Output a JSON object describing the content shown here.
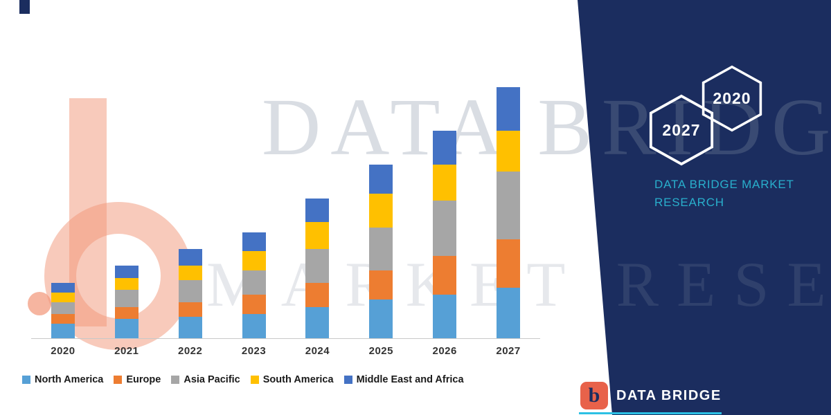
{
  "watermark": {
    "line1": "DATA BRIDGE",
    "line2": "MARKET RESEARCH"
  },
  "panel": {
    "hex_left": "2027",
    "hex_right": "2020",
    "title_line1": "DATA BRIDGE MARKET",
    "title_line2": "RESEARCH"
  },
  "footer": {
    "brand": "DATA BRIDGE",
    "logo_letter": "b"
  },
  "chart_data": {
    "type": "bar",
    "stacked": true,
    "title": "",
    "xlabel": "",
    "ylabel": "",
    "categories": [
      "2020",
      "2021",
      "2022",
      "2023",
      "2024",
      "2025",
      "2026",
      "2027"
    ],
    "series": [
      {
        "name": "North America",
        "color": "#56A0D6",
        "values": [
          6,
          8,
          9,
          10,
          13,
          16,
          18,
          21
        ]
      },
      {
        "name": "Europe",
        "color": "#ED7D31",
        "values": [
          4,
          5,
          6,
          8,
          10,
          12,
          16,
          20
        ]
      },
      {
        "name": "Asia Pacific",
        "color": "#A6A6A6",
        "values": [
          5,
          7,
          9,
          10,
          14,
          18,
          23,
          28
        ]
      },
      {
        "name": "South America",
        "color": "#FFC000",
        "values": [
          4,
          5,
          6,
          8,
          11,
          14,
          15,
          17
        ]
      },
      {
        "name": "Middle East and Africa",
        "color": "#4472C4",
        "values": [
          4,
          5,
          7,
          8,
          10,
          12,
          14,
          18
        ]
      }
    ],
    "ylim": [
      0,
      106
    ],
    "grid": false,
    "legend_position": "bottom"
  }
}
